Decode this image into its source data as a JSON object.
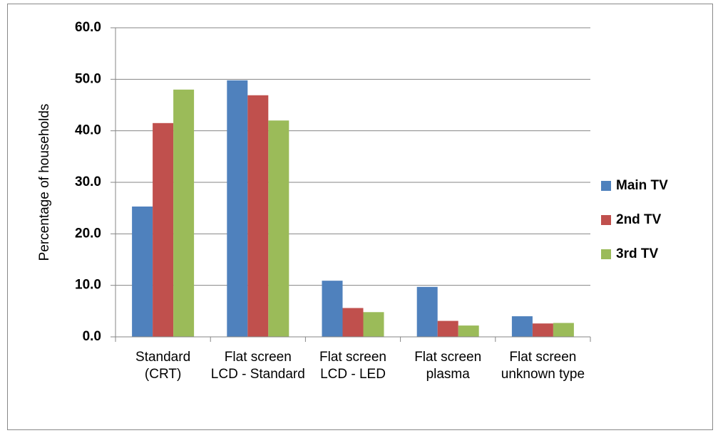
{
  "chart_data": {
    "type": "bar",
    "y_label": "Percentage of households",
    "categories": [
      "Standard (CRT)",
      "Flat screen LCD - Standard",
      "Flat screen LCD - LED",
      "Flat screen plasma",
      "Flat screen unknown type"
    ],
    "series": [
      {
        "name": "Main TV",
        "color": "#4f81bd",
        "values": [
          25.3,
          49.8,
          10.9,
          9.7,
          4.0
        ]
      },
      {
        "name": "2nd TV",
        "color": "#c0504d",
        "values": [
          41.5,
          46.9,
          5.6,
          3.1,
          2.6
        ]
      },
      {
        "name": "3rd TV",
        "color": "#9bbb59",
        "values": [
          48.0,
          42.0,
          4.8,
          2.2,
          2.7
        ]
      }
    ],
    "ylim": [
      0,
      60
    ],
    "yticks": [
      {
        "value": 0,
        "label": "0.0"
      },
      {
        "value": 10,
        "label": "10.0"
      },
      {
        "value": 20,
        "label": "20.0"
      },
      {
        "value": 30,
        "label": "30.0"
      },
      {
        "value": 40,
        "label": "40.0"
      },
      {
        "value": 50,
        "label": "50.0"
      },
      {
        "value": 60,
        "label": "60.0"
      }
    ],
    "grid": true,
    "legend": "right"
  }
}
